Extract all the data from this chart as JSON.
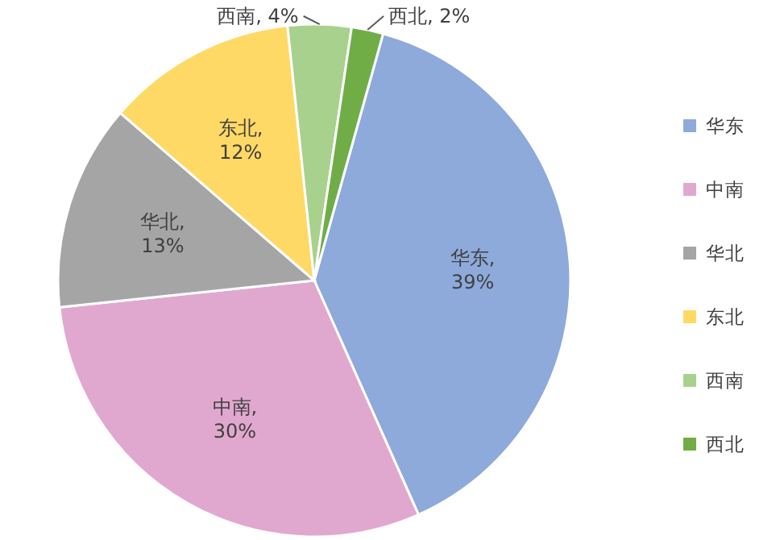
{
  "chart_data": {
    "type": "pie",
    "categories": [
      "华东",
      "中南",
      "华北",
      "东北",
      "西南",
      "西北"
    ],
    "values": [
      39,
      30,
      13,
      12,
      4,
      2
    ],
    "value_labels": [
      "华东, 39%",
      "中南, 30%",
      "华北, 13%",
      "东北, 12%",
      "西南, 4%",
      "西北, 2%"
    ],
    "colors": [
      "#8eaadb",
      "#e1a8cf",
      "#a5a5a5",
      "#ffd966",
      "#a9d18e",
      "#70ad47"
    ],
    "legend": "right"
  }
}
